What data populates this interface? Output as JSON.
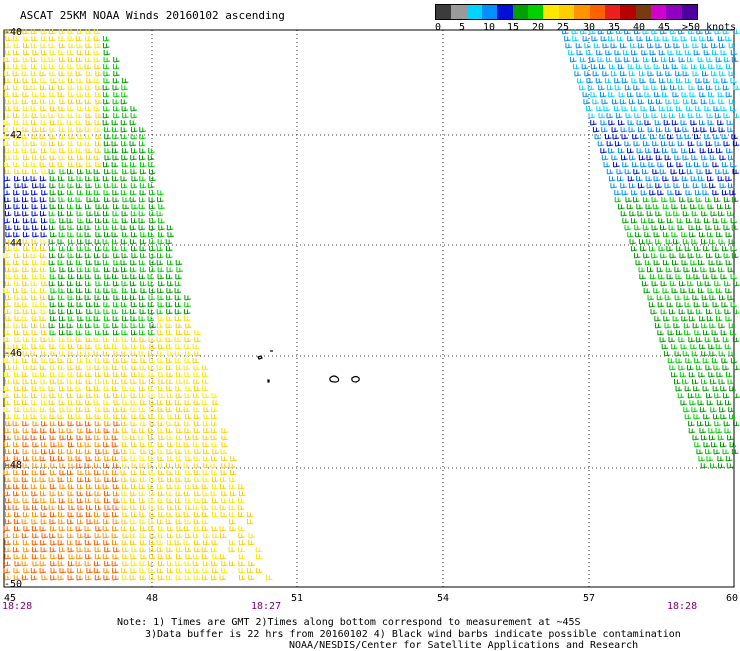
{
  "title": "ASCAT 25KM NOAA Winds 20160102 ascending",
  "legend": {
    "labels": [
      "0",
      "5",
      "10",
      "15",
      "20",
      "25",
      "30",
      "35",
      "40",
      "45",
      ">50 knots"
    ],
    "colors": [
      "#3c3c3c",
      "#9a9a9a",
      "#00d4ff",
      "#0090ff",
      "#0010d8",
      "#00a000",
      "#00d000",
      "#ffe800",
      "#ffd000",
      "#ff9400",
      "#ff6000",
      "#e82020",
      "#b80000",
      "#7a3a10",
      "#d000d0",
      "#9000c0",
      "#5000a0"
    ]
  },
  "axes": {
    "lat_labels": [
      "-40",
      "-42",
      "-44",
      "-46",
      "-48",
      "-50"
    ],
    "lon_labels": [
      "45",
      "48",
      "51",
      "54",
      "57",
      "60"
    ]
  },
  "times": {
    "left": "18:28",
    "middle": "18:27",
    "right": "18:28"
  },
  "notes": {
    "line1": "Note: 1) Times are GMT 2)Times along bottom correspond to measurement at ~45S",
    "line2": "3)Data buffer is 22 hrs from 20160102 4) Black wind barbs indicate possible contamination",
    "line3": "NOAA/NESDIS/Center for Satellite Applications and Research"
  }
}
